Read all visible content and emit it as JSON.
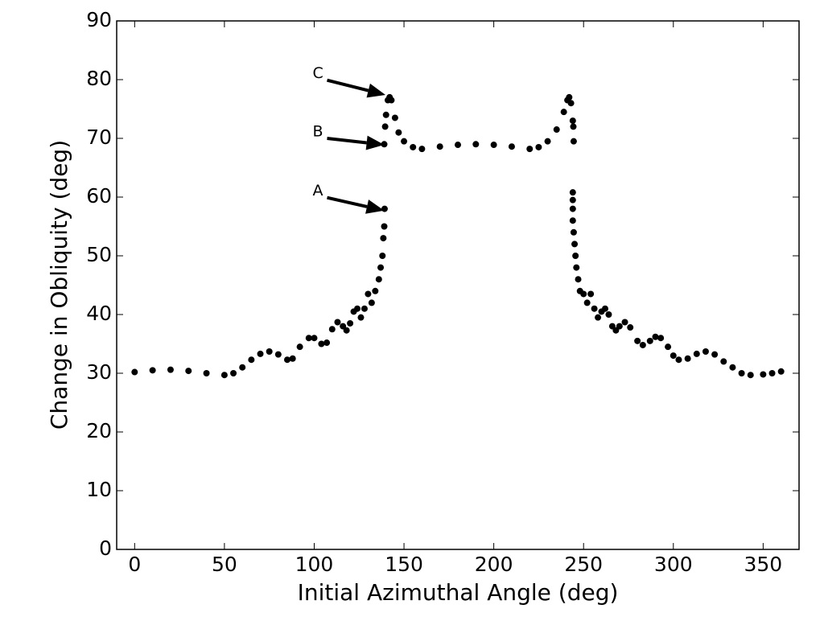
{
  "chart_data": {
    "type": "scatter",
    "x_label": "Initial Azimuthal Angle (deg)",
    "y_label": "Change in Obliquity (deg)",
    "xlim": [
      -10,
      370
    ],
    "ylim": [
      0,
      90
    ],
    "xticks": [
      0,
      50,
      100,
      150,
      200,
      250,
      300,
      350
    ],
    "yticks": [
      0,
      10,
      20,
      30,
      40,
      50,
      60,
      70,
      80,
      90
    ],
    "color": "#000000",
    "x": [
      0,
      10,
      20,
      30,
      40,
      50,
      55,
      60,
      65,
      70,
      75,
      80,
      85,
      88,
      92,
      97,
      100,
      104,
      107,
      110,
      113,
      116,
      118,
      120,
      122,
      124,
      126,
      128,
      130,
      132,
      134,
      136,
      137,
      138,
      138.5,
      139,
      139.2,
      139,
      139.5,
      140,
      141,
      142,
      143,
      145,
      147,
      150,
      155,
      160,
      170,
      180,
      190,
      200,
      210,
      220,
      225,
      230,
      235,
      239,
      241,
      242,
      243,
      244,
      244.3,
      244.5,
      244,
      244,
      244,
      244,
      244.5,
      245,
      245.5,
      246,
      247,
      248,
      250,
      252,
      254,
      256,
      258,
      260,
      262,
      264,
      266,
      268,
      270,
      273,
      276,
      280,
      283,
      287,
      290,
      293,
      297,
      300,
      303,
      308,
      313,
      318,
      323,
      328,
      333,
      338,
      343,
      350,
      355,
      360
    ],
    "y": [
      30.2,
      30.5,
      30.6,
      30.4,
      30.0,
      29.7,
      30.0,
      31.0,
      32.3,
      33.3,
      33.7,
      33.2,
      32.3,
      32.5,
      34.5,
      36.0,
      36.0,
      35.0,
      35.2,
      37.5,
      38.7,
      38.0,
      37.3,
      38.5,
      40.5,
      41.0,
      39.5,
      41.0,
      43.5,
      42.0,
      44.0,
      46.0,
      48,
      50,
      53,
      55,
      58,
      69,
      72,
      74,
      76.5,
      77,
      76.5,
      73.5,
      71,
      69.5,
      68.5,
      68.2,
      68.6,
      68.9,
      69.0,
      68.9,
      68.6,
      68.2,
      68.5,
      69.5,
      71.5,
      74.5,
      76.5,
      77,
      76,
      73,
      72,
      69.5,
      60.8,
      59.5,
      58,
      56,
      54,
      52,
      50,
      48,
      46,
      44,
      43.5,
      42,
      43.5,
      41,
      39.5,
      40.5,
      41,
      40,
      38,
      37.3,
      38,
      38.7,
      37.8,
      35.5,
      34.8,
      35.5,
      36.2,
      36,
      34.5,
      33,
      32.3,
      32.5,
      33.3,
      33.7,
      33.2,
      32.0,
      31.0,
      30.0,
      29.7,
      29.8,
      30.0,
      30.3
    ],
    "annotations": [
      {
        "text": "C",
        "xy": [
          139.7,
          77.4
        ],
        "xytext": [
          102.7,
          81
        ]
      },
      {
        "text": "B",
        "xy": [
          139,
          68.9
        ],
        "xytext": [
          102.7,
          71.1
        ]
      },
      {
        "text": "A",
        "xy": [
          139,
          57.7
        ],
        "xytext": [
          102.7,
          61
        ]
      }
    ]
  }
}
